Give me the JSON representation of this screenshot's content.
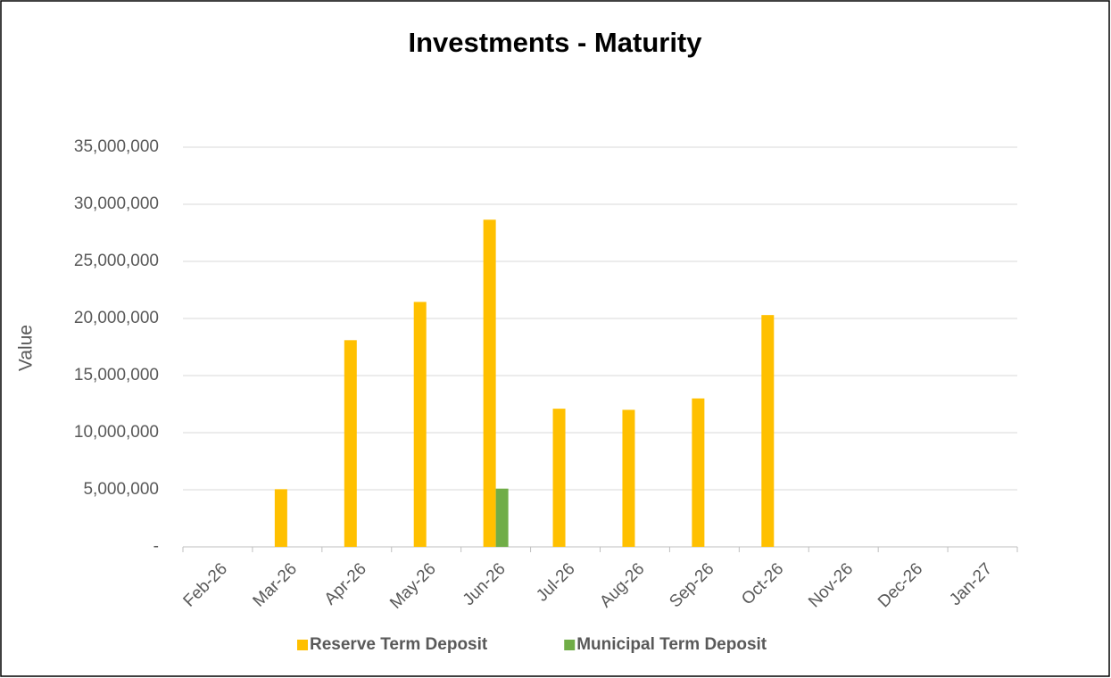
{
  "chart_data": {
    "type": "bar",
    "title": "Investments - Maturity",
    "y_label": "Value",
    "categories": [
      "Feb-26",
      "Mar-26",
      "Apr-26",
      "May-26",
      "Jun-26",
      "Jul-26",
      "Aug-26",
      "Sep-26",
      "Oct-26",
      "Nov-26",
      "Dec-26",
      "Jan-27"
    ],
    "series": [
      {
        "name": "Reserve Term Deposit",
        "color": "#ffc000",
        "values": [
          0,
          5050000,
          18100000,
          21450000,
          28650000,
          12100000,
          12000000,
          13000000,
          20300000,
          0,
          0,
          0
        ]
      },
      {
        "name": "Municipal Term Deposit",
        "color": "#70ad47",
        "values": [
          0,
          0,
          0,
          0,
          5100000,
          0,
          0,
          0,
          0,
          0,
          0,
          0
        ]
      }
    ],
    "ylim": [
      0,
      35000000
    ],
    "yticks": [
      {
        "value": 0,
        "label": "-"
      },
      {
        "value": 5000000,
        "label": "5,000,000"
      },
      {
        "value": 10000000,
        "label": "10,000,000"
      },
      {
        "value": 15000000,
        "label": "15,000,000"
      },
      {
        "value": 20000000,
        "label": "20,000,000"
      },
      {
        "value": 25000000,
        "label": "25,000,000"
      },
      {
        "value": 30000000,
        "label": "30,000,000"
      },
      {
        "value": 35000000,
        "label": "35,000,000"
      }
    ],
    "grid": true,
    "legend": "bottom"
  }
}
